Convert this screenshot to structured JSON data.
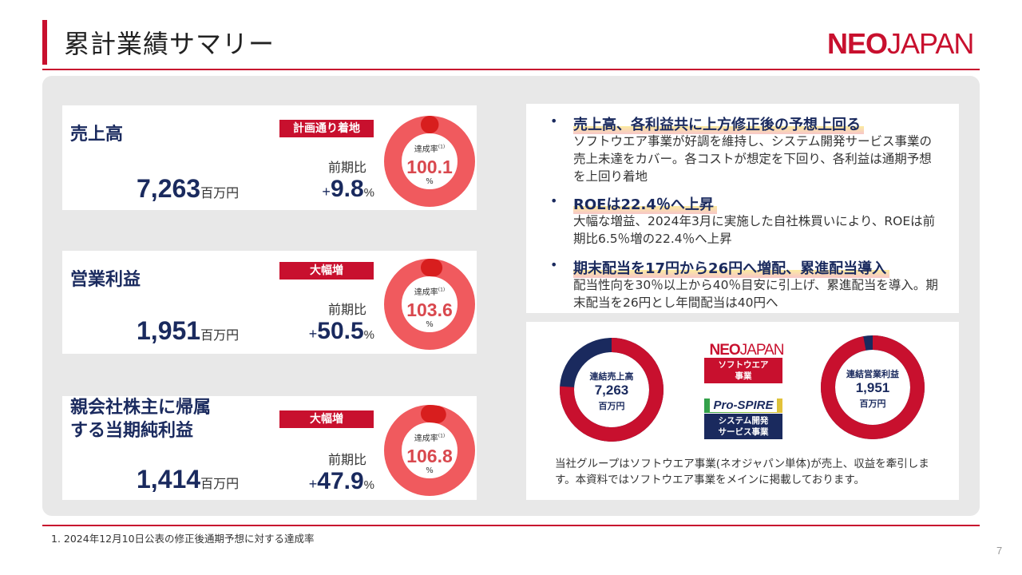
{
  "title": "累計業績サマリー",
  "logo": {
    "bold": "NEO",
    "thin": "JAPAN"
  },
  "cards": [
    {
      "name": "売上高",
      "tag": "計画通り着地",
      "value": "7,263",
      "unit": "百万円",
      "yoy_label": "前期比",
      "yoy_sign": "+",
      "yoy_value": "9.8",
      "yoy_pct": "%",
      "achieve_label": "達成率",
      "achieve_sup": "(1)",
      "achieve_value": "100.1",
      "achieve_pct": "%"
    },
    {
      "name": "営業利益",
      "tag": "大幅増",
      "value": "1,951",
      "unit": "百万円",
      "yoy_label": "前期比",
      "yoy_sign": "+",
      "yoy_value": "50.5",
      "yoy_pct": "%",
      "achieve_label": "達成率",
      "achieve_sup": "(1)",
      "achieve_value": "103.6",
      "achieve_pct": "%"
    },
    {
      "name_line1": "親会社株主に帰属",
      "name_line2": "する当期純利益",
      "tag": "大幅増",
      "value": "1,414",
      "unit": "百万円",
      "yoy_label": "前期比",
      "yoy_sign": "+",
      "yoy_value": "47.9",
      "yoy_pct": "%",
      "achieve_label": "達成率",
      "achieve_sup": "(1)",
      "achieve_value": "106.8",
      "achieve_pct": "%"
    }
  ],
  "bullets": [
    {
      "head": "売上高、各利益共に上方修正後の予想上回る",
      "body": "ソフトウエア事業が好調を維持し、システム開発サービス事業の売上未達をカバー。各コストが想定を下回り、各利益は通期予想を上回り着地"
    },
    {
      "head": "ROEは22.4％へ上昇",
      "body": "大幅な増益、2024年3月に実施した自社株買いにより、ROEは前期比6.5％増の22.4％へ上昇"
    },
    {
      "head": "期末配当を17円から26円へ増配、累進配当導入",
      "body": "配当性向を30％以上から40％目安に引上げ、累進配当を導入。期末配当を26円とし年間配当は40円へ"
    }
  ],
  "group": {
    "sales": {
      "title": "連結売上高",
      "value": "7,263",
      "unit": "百万円",
      "software_share": 0.76
    },
    "op_profit": {
      "title": "連結営業利益",
      "value": "1,951",
      "unit": "百万円",
      "software_share": 0.97
    },
    "logo_small": {
      "bold": "NEO",
      "thin": "JAPAN"
    },
    "software_segment_line1": "ソフトウエア",
    "software_segment_line2": "事業",
    "prospire_logo": "Pro-SPIRE",
    "sysdev_segment_line1": "システム開発",
    "sysdev_segment_line2": "サービス事業",
    "note": "当社グループはソフトウエア事業(ネオジャパン単体)が売上、収益を牽引します。本資料ではソフトウエア事業をメインに掲載しております。"
  },
  "footnote": "1.  2024年12月10日公表の修正後通期予想に対する達成率",
  "page_number": "7",
  "colors": {
    "brand_red": "#c8102e",
    "navy": "#1a2a5e",
    "donut_red": "#f05a5e",
    "donut_dark": "#d81e1e"
  }
}
